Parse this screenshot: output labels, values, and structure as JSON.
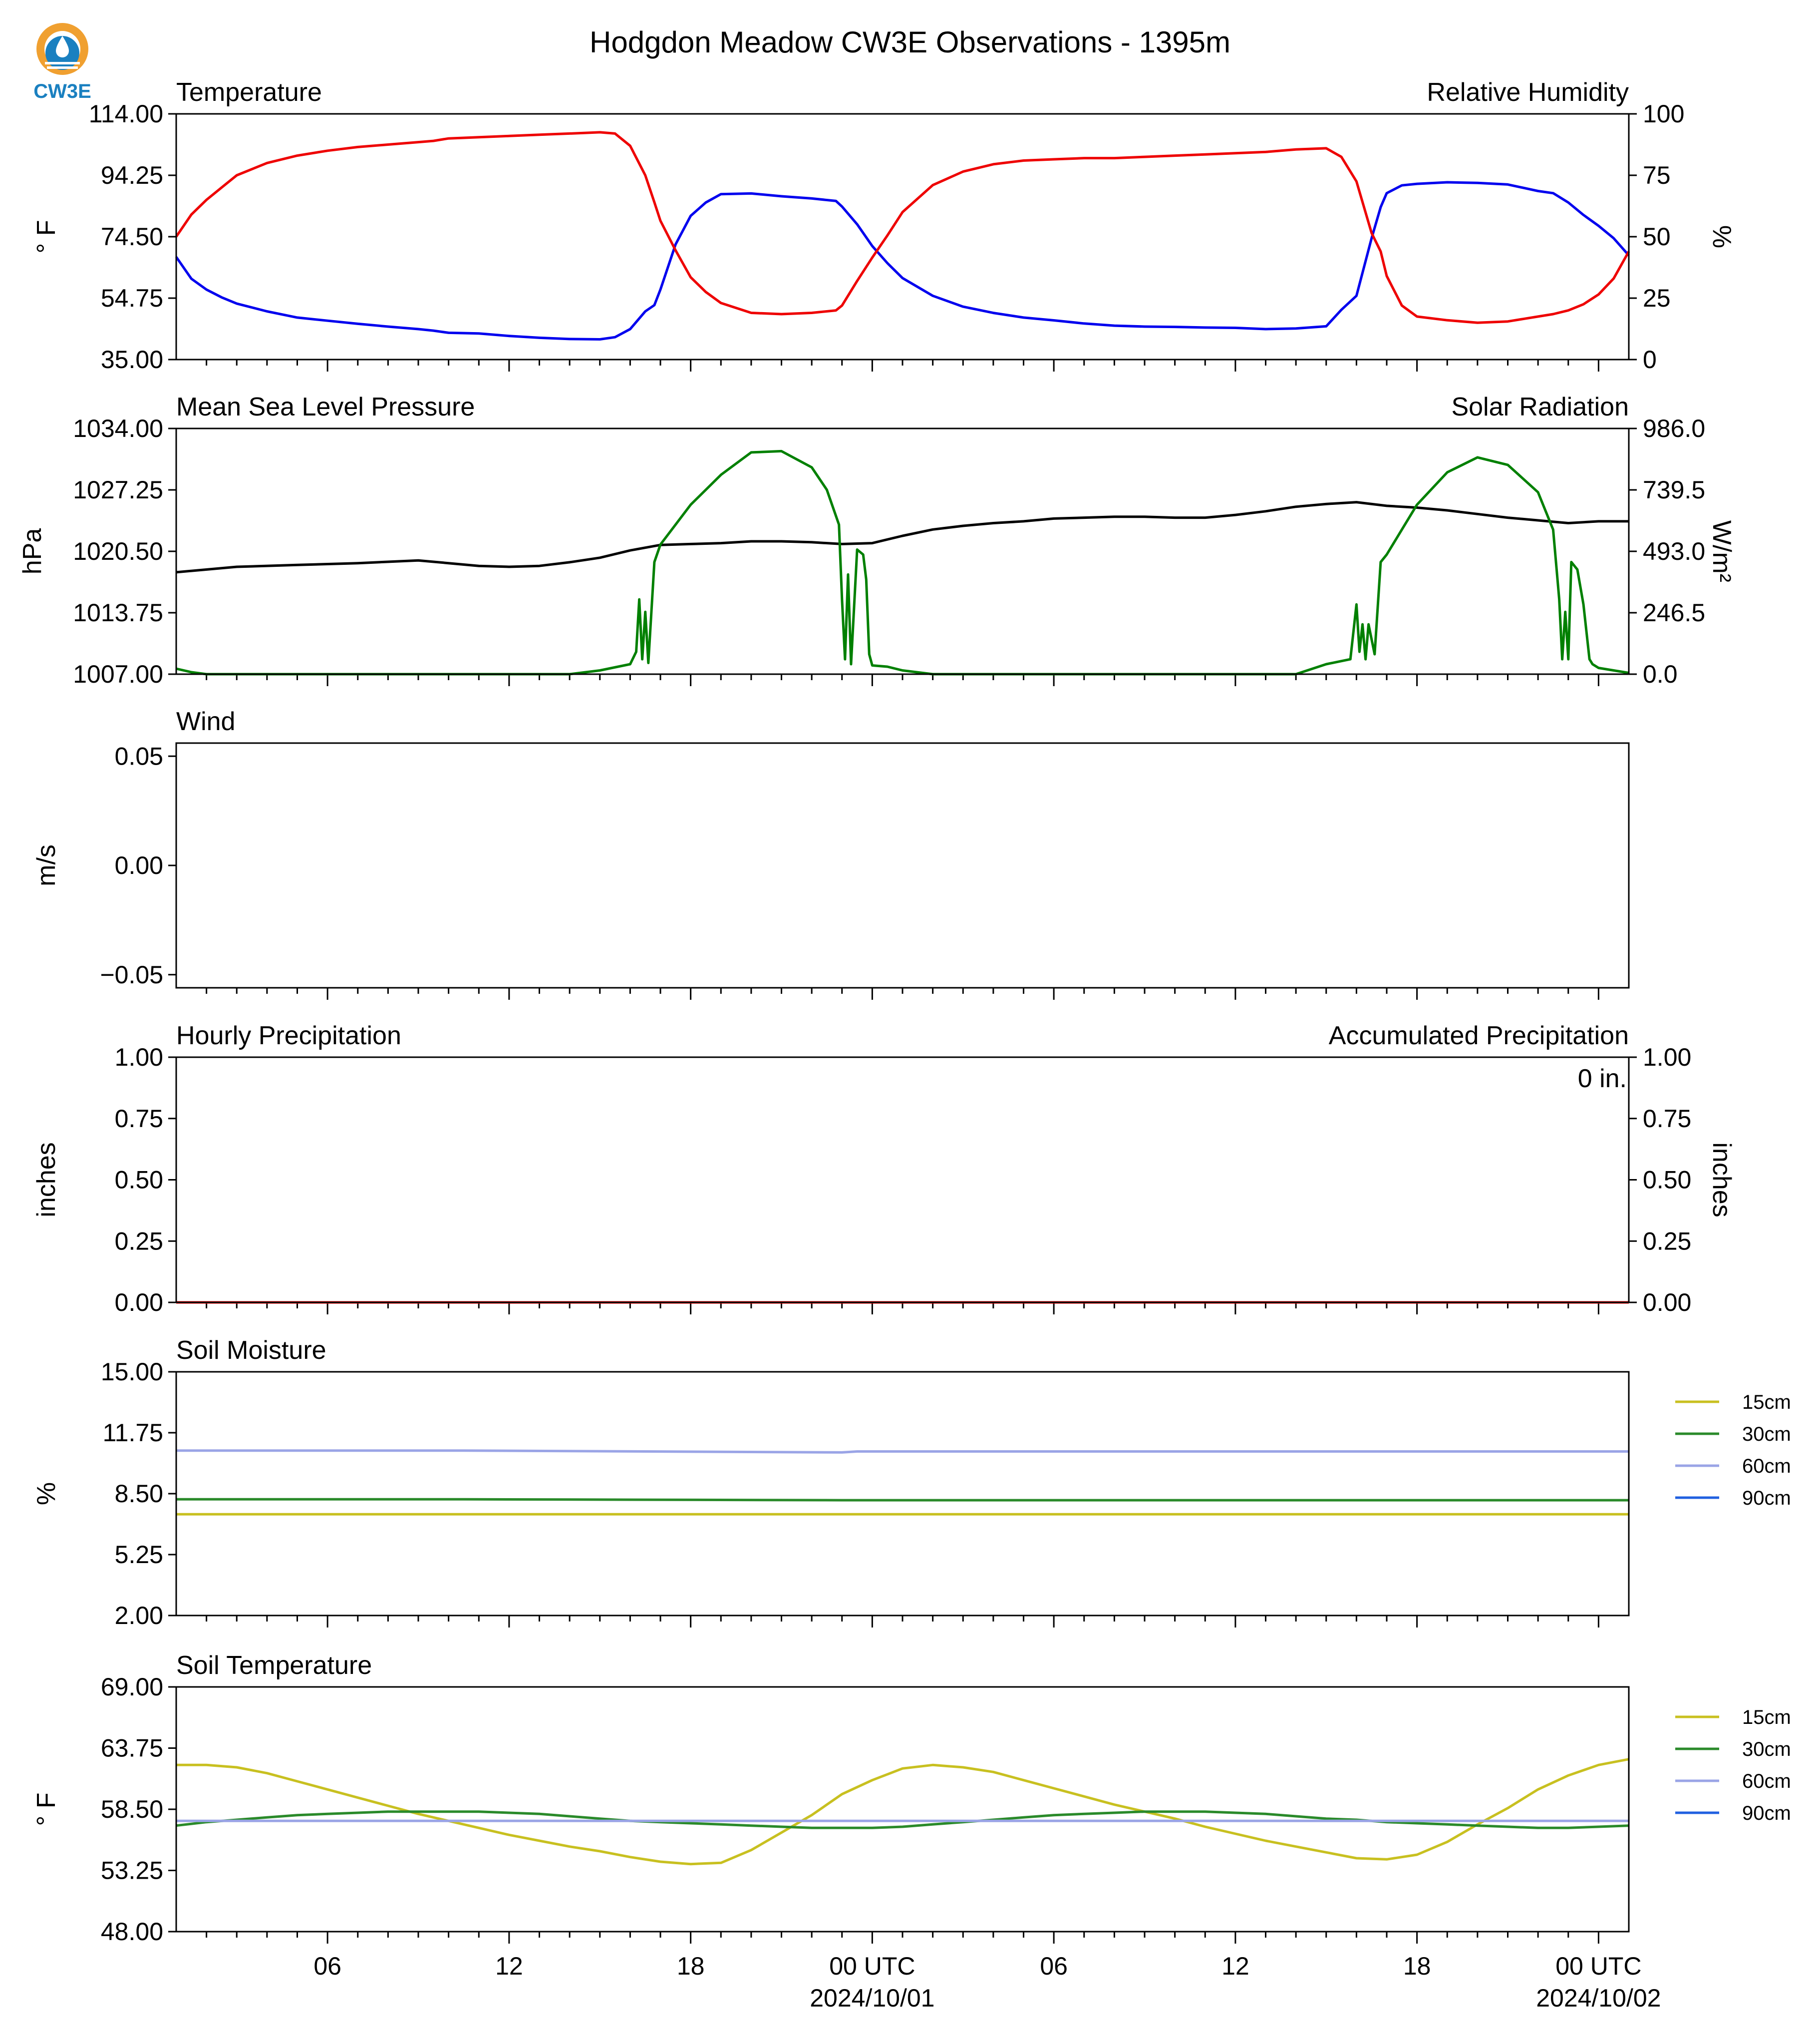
{
  "title": "Hodgdon Meadow CW3E Observations - 1395m",
  "logo_text": "CW3E",
  "colors": {
    "temperature": "#0000ee",
    "humidity": "#ee0000",
    "pressure": "#000000",
    "solar": "#008000",
    "hourly_precip": "#0000ee",
    "accum_precip": "#ee0000",
    "soil_15cm": "#c8c020",
    "soil_30cm": "#2a8a2a",
    "soil_60cm": "#9aa4e6",
    "soil_90cm": "#2060e0",
    "logo_orange": "#f0a030",
    "logo_blue": "#1a80c0"
  },
  "x_axis": {
    "range_hours": [
      0,
      48
    ],
    "tick_labels": [
      "06",
      "12",
      "18",
      "00 UTC",
      "06",
      "12",
      "18",
      "00 UTC"
    ],
    "tick_hours": [
      5,
      11,
      17,
      23,
      29,
      35,
      41,
      47
    ],
    "date_labels": [
      {
        "hour": 23,
        "text": "2024/10/01"
      },
      {
        "hour": 47,
        "text": "2024/10/02"
      }
    ]
  },
  "chart_data": [
    {
      "type": "line",
      "panel": "temperature_humidity",
      "title_left": "Temperature",
      "title_right": "Relative Humidity",
      "ylabel_left": "° F",
      "ylabel_right": "%",
      "ylim_left": [
        35,
        114
      ],
      "ylim_right": [
        0,
        100
      ],
      "yticks_left": [
        "114.00",
        "94.25",
        "74.50",
        "54.75",
        "35.00"
      ],
      "yticks_right": [
        "100",
        "75",
        "50",
        "25",
        "0"
      ],
      "series": [
        {
          "name": "Temperature",
          "axis": "left",
          "x": [
            0,
            0.5,
            1,
            1.5,
            2,
            3,
            4,
            5,
            6,
            7,
            8,
            8.5,
            9,
            10,
            11,
            12,
            13,
            14,
            14.5,
            15,
            15.5,
            15.8,
            16,
            16.5,
            17,
            17.5,
            18,
            19,
            20,
            21,
            21.8,
            22,
            22.5,
            23,
            23.5,
            24,
            25,
            26,
            27,
            28,
            29,
            30,
            31,
            32,
            33,
            34,
            35,
            36,
            37,
            38,
            38.5,
            39,
            39.5,
            39.8,
            40,
            40.5,
            41,
            42,
            43,
            44,
            45,
            45.5,
            46,
            46.5,
            47,
            47.5,
            48
          ],
          "y": [
            68,
            61,
            57.5,
            55,
            53,
            50.5,
            48.5,
            47.5,
            46.5,
            45.6,
            44.8,
            44.3,
            43.6,
            43.4,
            42.6,
            42.0,
            41.6,
            41.5,
            42.2,
            44.8,
            50.5,
            52.5,
            57.5,
            72.0,
            81.2,
            85.5,
            88.2,
            88.4,
            87.5,
            86.8,
            86.0,
            84.2,
            78.5,
            71.5,
            66.0,
            61.2,
            55.5,
            52.0,
            50.0,
            48.5,
            47.6,
            46.6,
            45.9,
            45.6,
            45.5,
            45.3,
            45.2,
            44.8,
            45.0,
            45.7,
            51.0,
            55.5,
            74.0,
            84.0,
            88.5,
            91.0,
            91.5,
            92.0,
            91.8,
            91.3,
            89.2,
            88.5,
            85.5,
            81.5,
            78.0,
            74.0,
            68.5
          ]
        },
        {
          "name": "Relative Humidity",
          "axis": "right",
          "x": [
            0,
            0.5,
            1,
            1.5,
            2,
            3,
            4,
            5,
            6,
            7,
            8,
            8.5,
            9,
            10,
            11,
            12,
            13,
            14,
            14.5,
            15,
            15.5,
            15.8,
            16,
            16.5,
            17,
            17.5,
            18,
            19,
            20,
            21,
            21.8,
            22,
            22.5,
            23,
            23.5,
            24,
            25,
            26,
            27,
            28,
            29,
            30,
            31,
            32,
            33,
            34,
            35,
            36,
            37,
            38,
            38.5,
            39,
            39.5,
            39.8,
            40,
            40.5,
            41,
            42,
            43,
            44,
            45,
            45.5,
            46,
            46.5,
            47,
            47.5,
            48
          ],
          "y": [
            50,
            59,
            65,
            70,
            75,
            80,
            83,
            85,
            86.5,
            87.5,
            88.5,
            89,
            90,
            90.5,
            91,
            91.5,
            92,
            92.5,
            92.0,
            87.0,
            75.0,
            64.0,
            56.5,
            44.5,
            33.5,
            27.5,
            23.0,
            19.0,
            18.5,
            19.0,
            20.0,
            22.0,
            32.0,
            41.5,
            50.5,
            60.0,
            71.0,
            76.5,
            79.5,
            81.0,
            81.5,
            82.0,
            82.0,
            82.5,
            83.0,
            83.5,
            84.0,
            84.5,
            85.5,
            86.0,
            82.5,
            72.5,
            51.5,
            44.0,
            34.0,
            22.0,
            17.5,
            16.0,
            15.0,
            15.5,
            17.5,
            18.5,
            20.0,
            22.5,
            26.5,
            33.0,
            44.0
          ]
        }
      ]
    },
    {
      "type": "line",
      "panel": "pressure_solar",
      "title_left": "Mean Sea Level Pressure",
      "title_right": "Solar Radiation",
      "ylabel_left": "hPa",
      "ylabel_right": "W/m²",
      "ylim_left": [
        1007,
        1034
      ],
      "ylim_right": [
        0,
        986
      ],
      "yticks_left": [
        "1034.00",
        "1027.25",
        "1020.50",
        "1013.75",
        "1007.00"
      ],
      "yticks_right": [
        "986.0",
        "739.5",
        "493.0",
        "246.5",
        "0.0"
      ],
      "series": [
        {
          "name": "Mean Sea Level Pressure",
          "axis": "left",
          "x": [
            0,
            2,
            4,
            6,
            8,
            9,
            10,
            11,
            12,
            13,
            14,
            15,
            16,
            17,
            18,
            19,
            20,
            21,
            22,
            23,
            24,
            25,
            26,
            27,
            28,
            29,
            30,
            31,
            32,
            33,
            34,
            35,
            36,
            37,
            38,
            39,
            40,
            41,
            42,
            43,
            44,
            45,
            46,
            47,
            48
          ],
          "y": [
            1018.2,
            1018.8,
            1019.0,
            1019.2,
            1019.5,
            1019.2,
            1018.9,
            1018.8,
            1018.9,
            1019.3,
            1019.8,
            1020.6,
            1021.2,
            1021.3,
            1021.4,
            1021.6,
            1021.6,
            1021.5,
            1021.3,
            1021.4,
            1022.2,
            1022.9,
            1023.3,
            1023.6,
            1023.8,
            1024.1,
            1024.2,
            1024.3,
            1024.3,
            1024.2,
            1024.2,
            1024.5,
            1024.9,
            1025.4,
            1025.7,
            1025.9,
            1025.5,
            1025.3,
            1025.0,
            1024.6,
            1024.2,
            1023.9,
            1023.6,
            1023.8,
            1023.8
          ]
        },
        {
          "name": "Solar Radiation",
          "axis": "right",
          "x": [
            0,
            0.5,
            1,
            13,
            14,
            15,
            15.2,
            15.3,
            15.4,
            15.5,
            15.6,
            15.8,
            16.0,
            16.5,
            17,
            18,
            19,
            20,
            21,
            21.5,
            21.9,
            22.0,
            22.1,
            22.2,
            22.3,
            22.5,
            22.7,
            22.8,
            22.9,
            23.0,
            23.5,
            24,
            25,
            37,
            38,
            38.8,
            39.0,
            39.1,
            39.2,
            39.3,
            39.4,
            39.6,
            39.8,
            40.0,
            40.5,
            41,
            42,
            43,
            44,
            45,
            45.5,
            45.7,
            45.8,
            45.9,
            46.0,
            46.1,
            46.3,
            46.5,
            46.7,
            46.8,
            47.0,
            48
          ],
          "y": [
            22,
            8,
            0,
            0,
            15,
            40,
            90,
            300,
            60,
            250,
            45,
            450,
            520,
            600,
            680,
            800,
            890,
            895,
            830,
            740,
            600,
            300,
            60,
            400,
            40,
            500,
            480,
            380,
            80,
            35,
            30,
            15,
            0,
            0,
            40,
            60,
            280,
            90,
            200,
            60,
            200,
            80,
            450,
            480,
            580,
            680,
            810,
            870,
            840,
            730,
            580,
            300,
            60,
            250,
            60,
            450,
            420,
            280,
            60,
            40,
            25,
            5
          ]
        }
      ]
    },
    {
      "type": "line",
      "panel": "wind",
      "title_left": "Wind",
      "ylabel_left": "m/s",
      "ylim_left": [
        -0.056,
        0.056
      ],
      "yticks_left": [
        "0.05",
        "0.00",
        "−0.05"
      ],
      "series": []
    },
    {
      "type": "line",
      "panel": "precipitation",
      "title_left": "Hourly Precipitation",
      "title_right": "Accumulated Precipitation",
      "ylabel_left": "inches",
      "ylabel_right": "inches",
      "ylim_left": [
        0,
        1
      ],
      "ylim_right": [
        0,
        1
      ],
      "yticks_left": [
        "1.00",
        "0.75",
        "0.50",
        "0.25",
        "0.00"
      ],
      "yticks_right": [
        "1.00",
        "0.75",
        "0.50",
        "0.25",
        "0.00"
      ],
      "annotation": "0 in.",
      "series": [
        {
          "name": "Hourly Precipitation",
          "axis": "left",
          "x": [
            0,
            48
          ],
          "y": [
            0,
            0
          ]
        },
        {
          "name": "Accumulated Precipitation",
          "axis": "right",
          "x": [
            0,
            48
          ],
          "y": [
            0,
            0
          ]
        }
      ]
    },
    {
      "type": "line",
      "panel": "soil_moisture",
      "title_left": "Soil Moisture",
      "ylabel_left": "%",
      "ylim_left": [
        2,
        15
      ],
      "yticks_left": [
        "15.00",
        "11.75",
        "8.50",
        "5.25",
        "2.00"
      ],
      "legend": [
        "15cm",
        "30cm",
        "60cm",
        "90cm"
      ],
      "series": [
        {
          "name": "15cm",
          "x": [
            0,
            9,
            9.5,
            22,
            22.5,
            48
          ],
          "y": [
            7.4,
            7.4,
            7.4,
            7.4,
            7.4,
            7.4
          ]
        },
        {
          "name": "30cm",
          "x": [
            0,
            9,
            9.5,
            22,
            22.5,
            48
          ],
          "y": [
            8.2,
            8.2,
            8.2,
            8.15,
            8.15,
            8.15
          ]
        },
        {
          "name": "60cm",
          "x": [
            0,
            9,
            9.5,
            22,
            22.5,
            48
          ],
          "y": [
            10.8,
            10.8,
            10.8,
            10.7,
            10.75,
            10.75
          ]
        },
        {
          "name": "90cm",
          "x": [],
          "y": []
        }
      ]
    },
    {
      "type": "line",
      "panel": "soil_temperature",
      "title_left": "Soil Temperature",
      "ylabel_left": "° F",
      "ylim_left": [
        48,
        69
      ],
      "yticks_left": [
        "69.00",
        "63.75",
        "58.50",
        "53.25",
        "48.00"
      ],
      "legend": [
        "15cm",
        "30cm",
        "60cm",
        "90cm"
      ],
      "series": [
        {
          "name": "15cm",
          "x": [
            0,
            1,
            2,
            3,
            4,
            5,
            6,
            7,
            8,
            9,
            10,
            11,
            12,
            13,
            14,
            15,
            16,
            17,
            18,
            19,
            20,
            21,
            22,
            23,
            24,
            25,
            26,
            27,
            28,
            29,
            30,
            31,
            32,
            33,
            34,
            35,
            36,
            37,
            38,
            39,
            40,
            41,
            42,
            43,
            44,
            45,
            46,
            47,
            48
          ],
          "y": [
            62.3,
            62.3,
            62.1,
            61.6,
            60.9,
            60.2,
            59.5,
            58.8,
            58.1,
            57.5,
            56.9,
            56.3,
            55.8,
            55.3,
            54.9,
            54.4,
            54.0,
            53.8,
            53.9,
            55.0,
            56.5,
            58.0,
            59.8,
            61.0,
            62.0,
            62.3,
            62.1,
            61.7,
            61.0,
            60.3,
            59.6,
            58.9,
            58.3,
            57.7,
            57.0,
            56.4,
            55.8,
            55.3,
            54.8,
            54.3,
            54.2,
            54.6,
            55.7,
            57.2,
            58.6,
            60.2,
            61.4,
            62.3,
            62.8
          ]
        },
        {
          "name": "30cm",
          "x": [
            0,
            1,
            2,
            3,
            4,
            5,
            6,
            7,
            8,
            9,
            10,
            11,
            12,
            13,
            14,
            15,
            16,
            17,
            18,
            19,
            20,
            21,
            22,
            23,
            24,
            25,
            26,
            27,
            28,
            29,
            30,
            31,
            32,
            33,
            34,
            35,
            36,
            37,
            38,
            39,
            40,
            41,
            42,
            43,
            44,
            45,
            46,
            47,
            48
          ],
          "y": [
            57.1,
            57.4,
            57.6,
            57.8,
            58.0,
            58.1,
            58.2,
            58.3,
            58.3,
            58.3,
            58.3,
            58.2,
            58.1,
            57.9,
            57.7,
            57.5,
            57.4,
            57.3,
            57.2,
            57.1,
            57.0,
            56.9,
            56.9,
            56.9,
            57.0,
            57.2,
            57.4,
            57.6,
            57.8,
            58.0,
            58.1,
            58.2,
            58.3,
            58.3,
            58.3,
            58.2,
            58.1,
            57.9,
            57.7,
            57.6,
            57.4,
            57.3,
            57.2,
            57.1,
            57.0,
            56.9,
            56.9,
            57.0,
            57.1
          ]
        },
        {
          "name": "60cm",
          "x": [
            0,
            48
          ],
          "y": [
            57.5,
            57.5
          ]
        },
        {
          "name": "90cm",
          "x": [],
          "y": []
        }
      ]
    }
  ]
}
